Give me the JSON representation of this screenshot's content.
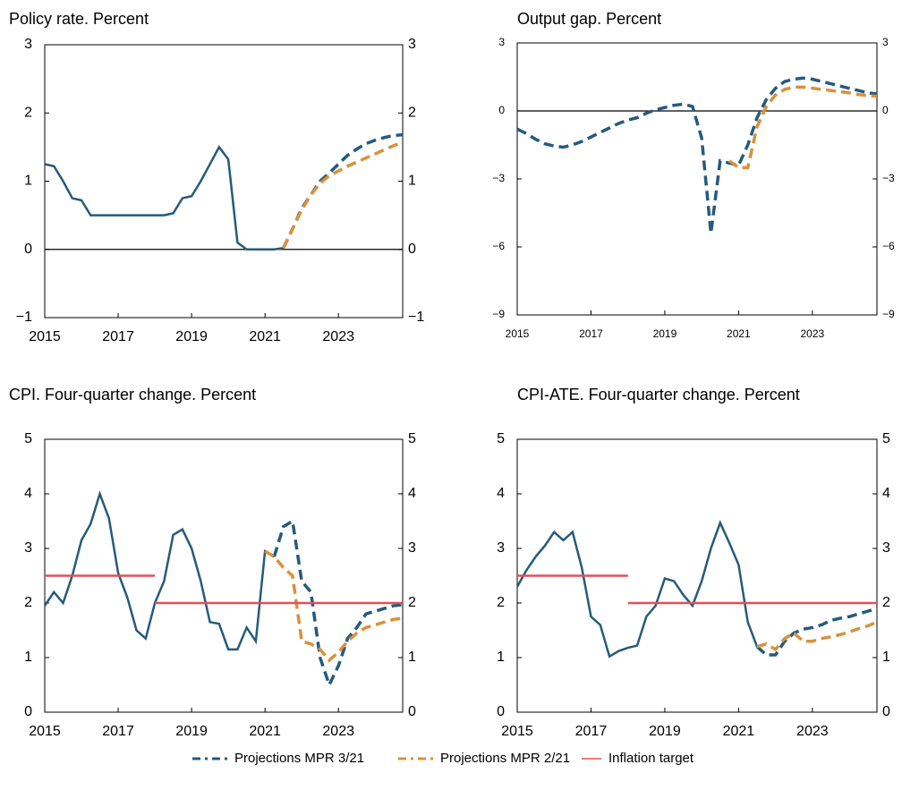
{
  "chart_data": [
    {
      "type": "line",
      "title": "Policy rate. Percent",
      "xlim": [
        2015,
        2024.75
      ],
      "xticks": [
        2015,
        2017,
        2019,
        2021,
        2023
      ],
      "ylim": [
        -1,
        3
      ],
      "yticks": [
        {
          "value": -1,
          "label": "−1"
        },
        0,
        1,
        2,
        3
      ],
      "zero_line": true,
      "series": [
        {
          "color": "#245b7c",
          "dash": "solid",
          "x": [
            2015,
            2015.25,
            2015.5,
            2015.75,
            2016,
            2016.25,
            2016.5,
            2016.75,
            2017,
            2017.25,
            2017.5,
            2017.75,
            2018,
            2018.25,
            2018.5,
            2018.75,
            2019,
            2019.25,
            2019.5,
            2019.75,
            2020,
            2020.25,
            2020.5,
            2020.75,
            2021,
            2021.25,
            2021.5
          ],
          "values": [
            1.25,
            1.22,
            1.0,
            0.75,
            0.72,
            0.5,
            0.5,
            0.5,
            0.5,
            0.5,
            0.5,
            0.5,
            0.5,
            0.5,
            0.53,
            0.75,
            0.78,
            1.0,
            1.25,
            1.5,
            1.32,
            0.1,
            0,
            0,
            0,
            0,
            0.02
          ]
        },
        {
          "name": "Projections MPR 3/21",
          "color": "#245b7c",
          "dash": "dashed",
          "x": [
            2021.5,
            2021.75,
            2022,
            2022.25,
            2022.5,
            2022.75,
            2023,
            2023.25,
            2023.5,
            2023.75,
            2024,
            2024.25,
            2024.5,
            2024.75
          ],
          "values": [
            0.02,
            0.3,
            0.6,
            0.8,
            1.0,
            1.12,
            1.25,
            1.38,
            1.47,
            1.55,
            1.6,
            1.64,
            1.67,
            1.68
          ]
        },
        {
          "name": "Projections MPR 2/21",
          "color": "#d9913a",
          "dash": "dashed",
          "x": [
            2021.5,
            2021.75,
            2022,
            2022.25,
            2022.5,
            2022.75,
            2023,
            2023.25,
            2023.5,
            2023.75,
            2024,
            2024.25,
            2024.5,
            2024.75
          ],
          "values": [
            0.02,
            0.3,
            0.58,
            0.8,
            0.97,
            1.08,
            1.15,
            1.22,
            1.28,
            1.34,
            1.4,
            1.46,
            1.52,
            1.57
          ]
        }
      ]
    },
    {
      "type": "line",
      "title": "Output gap. Percent",
      "xlim": [
        2015,
        2024.75
      ],
      "xticks": [
        2015,
        2017,
        2019,
        2021,
        2023
      ],
      "ylim": [
        -9,
        3
      ],
      "yticks": [
        {
          "value": -9,
          "label": "−9"
        },
        {
          "value": -6,
          "label": "−6"
        },
        {
          "value": -3,
          "label": "−3"
        },
        0,
        3
      ],
      "zero_line": true,
      "series": [
        {
          "name": "Projections MPR 3/21",
          "color": "#245b7c",
          "dash": "dashed",
          "x": [
            2015,
            2015.25,
            2015.5,
            2015.75,
            2016,
            2016.25,
            2016.5,
            2016.75,
            2017,
            2017.25,
            2017.5,
            2017.75,
            2018,
            2018.25,
            2018.5,
            2018.75,
            2019,
            2019.25,
            2019.5,
            2019.75,
            2020,
            2020.25,
            2020.5,
            2020.75,
            2021,
            2021.25,
            2021.5,
            2021.75,
            2022,
            2022.25,
            2022.5,
            2022.75,
            2023,
            2023.25,
            2023.5,
            2023.75,
            2024,
            2024.25,
            2024.5,
            2024.75
          ],
          "values": [
            -0.8,
            -1.0,
            -1.25,
            -1.45,
            -1.55,
            -1.6,
            -1.5,
            -1.35,
            -1.15,
            -0.95,
            -0.75,
            -0.55,
            -0.4,
            -0.3,
            -0.1,
            0.05,
            0.15,
            0.25,
            0.3,
            0.2,
            -1.2,
            -5.4,
            -2.2,
            -2.3,
            -2.4,
            -1.5,
            -0.3,
            0.5,
            1.0,
            1.3,
            1.4,
            1.45,
            1.4,
            1.3,
            1.2,
            1.1,
            1.0,
            0.9,
            0.8,
            0.75
          ]
        },
        {
          "name": "Projections MPR 2/21",
          "color": "#d9913a",
          "dash": "dashed",
          "x": [
            2020.75,
            2021,
            2021.25,
            2021.5,
            2021.75,
            2022,
            2022.25,
            2022.5,
            2022.75,
            2023,
            2023.25,
            2023.5,
            2023.75,
            2024,
            2024.25,
            2024.5,
            2024.75
          ],
          "values": [
            -2.2,
            -2.5,
            -2.5,
            -0.7,
            0.2,
            0.7,
            0.95,
            1.05,
            1.05,
            1.0,
            0.95,
            0.9,
            0.85,
            0.8,
            0.72,
            0.68,
            0.65
          ]
        }
      ]
    },
    {
      "type": "line",
      "title": "CPI. Four-quarter change. Percent",
      "xlim": [
        2015,
        2024.75
      ],
      "xticks": [
        2015,
        2017,
        2019,
        2021,
        2023
      ],
      "ylim": [
        0,
        5
      ],
      "yticks": [
        0,
        1,
        2,
        3,
        4,
        5
      ],
      "zero_line": false,
      "series": [
        {
          "color": "#245b7c",
          "dash": "solid",
          "x": [
            2015,
            2015.25,
            2015.5,
            2015.75,
            2016,
            2016.25,
            2016.5,
            2016.75,
            2017,
            2017.25,
            2017.5,
            2017.75,
            2018,
            2018.25,
            2018.5,
            2018.75,
            2019,
            2019.25,
            2019.5,
            2019.75,
            2020,
            2020.25,
            2020.5,
            2020.75,
            2021,
            2021.25
          ],
          "values": [
            1.95,
            2.2,
            2.0,
            2.5,
            3.15,
            3.45,
            4.0,
            3.55,
            2.55,
            2.1,
            1.5,
            1.35,
            2.0,
            2.4,
            3.25,
            3.35,
            3.0,
            2.4,
            1.65,
            1.62,
            1.15,
            1.15,
            1.55,
            1.3,
            2.95,
            2.85
          ]
        },
        {
          "name": "Projections MPR 3/21",
          "color": "#245b7c",
          "dash": "dashed",
          "x": [
            2021.25,
            2021.5,
            2021.75,
            2022,
            2022.25,
            2022.5,
            2022.75,
            2023,
            2023.25,
            2023.5,
            2023.75,
            2024,
            2024.25,
            2024.5,
            2024.75
          ],
          "values": [
            2.85,
            3.4,
            3.5,
            2.4,
            2.2,
            1.0,
            0.5,
            0.85,
            1.35,
            1.55,
            1.8,
            1.85,
            1.9,
            1.95,
            1.97
          ]
        },
        {
          "name": "Projections MPR 2/21",
          "color": "#d9913a",
          "dash": "dashed",
          "x": [
            2021,
            2021.25,
            2021.5,
            2021.75,
            2022,
            2022.25,
            2022.5,
            2022.75,
            2023,
            2023.25,
            2023.5,
            2023.75,
            2024,
            2024.25,
            2024.5,
            2024.75
          ],
          "values": [
            2.95,
            2.85,
            2.65,
            2.5,
            1.3,
            1.25,
            1.15,
            0.95,
            1.1,
            1.3,
            1.45,
            1.55,
            1.6,
            1.65,
            1.7,
            1.72
          ]
        },
        {
          "name": "Inflation target",
          "color": "#e0505a",
          "dash": "solid",
          "x": [
            2015,
            2018,
            2018,
            2018,
            2024.75
          ],
          "values": [
            2.5,
            2.5,
            null,
            2,
            2
          ]
        }
      ]
    },
    {
      "type": "line",
      "title": "CPI-ATE. Four-quarter change. Percent",
      "xlim": [
        2015,
        2024.75
      ],
      "xticks": [
        2015,
        2017,
        2019,
        2021,
        2023
      ],
      "ylim": [
        0,
        5
      ],
      "yticks": [
        0,
        1,
        2,
        3,
        4,
        5
      ],
      "zero_line": false,
      "series": [
        {
          "color": "#245b7c",
          "dash": "solid",
          "x": [
            2015,
            2015.25,
            2015.5,
            2015.75,
            2016,
            2016.25,
            2016.5,
            2016.75,
            2017,
            2017.25,
            2017.5,
            2017.75,
            2018,
            2018.25,
            2018.5,
            2018.75,
            2019,
            2019.25,
            2019.5,
            2019.75,
            2020,
            2020.25,
            2020.5,
            2020.75,
            2021,
            2021.25,
            2021.5
          ],
          "values": [
            2.3,
            2.6,
            2.85,
            3.05,
            3.3,
            3.15,
            3.3,
            2.65,
            1.75,
            1.6,
            1.02,
            1.12,
            1.18,
            1.22,
            1.75,
            1.95,
            2.45,
            2.4,
            2.15,
            1.95,
            2.4,
            3.0,
            3.47,
            3.1,
            2.7,
            1.65,
            1.2
          ]
        },
        {
          "name": "Projections MPR 3/21",
          "color": "#245b7c",
          "dash": "dashed",
          "x": [
            2021.5,
            2021.75,
            2022,
            2022.25,
            2022.5,
            2022.75,
            2023,
            2023.25,
            2023.5,
            2023.75,
            2024,
            2024.25,
            2024.5,
            2024.75
          ],
          "values": [
            1.2,
            1.05,
            1.05,
            1.3,
            1.45,
            1.52,
            1.55,
            1.6,
            1.68,
            1.72,
            1.75,
            1.8,
            1.85,
            1.9
          ]
        },
        {
          "name": "Projections MPR 2/21",
          "color": "#d9913a",
          "dash": "dashed",
          "x": [
            2021.5,
            2021.75,
            2022,
            2022.25,
            2022.5,
            2022.75,
            2023,
            2023.25,
            2023.5,
            2023.75,
            2024,
            2024.25,
            2024.5,
            2024.75
          ],
          "values": [
            1.2,
            1.25,
            1.15,
            1.35,
            1.45,
            1.3,
            1.3,
            1.35,
            1.38,
            1.42,
            1.47,
            1.53,
            1.58,
            1.65
          ]
        },
        {
          "name": "Inflation target",
          "color": "#e0505a",
          "dash": "solid",
          "x": [
            2015,
            2018,
            2018,
            2018,
            2024.75
          ],
          "values": [
            2.5,
            2.5,
            null,
            2,
            2
          ]
        }
      ]
    }
  ]
}
